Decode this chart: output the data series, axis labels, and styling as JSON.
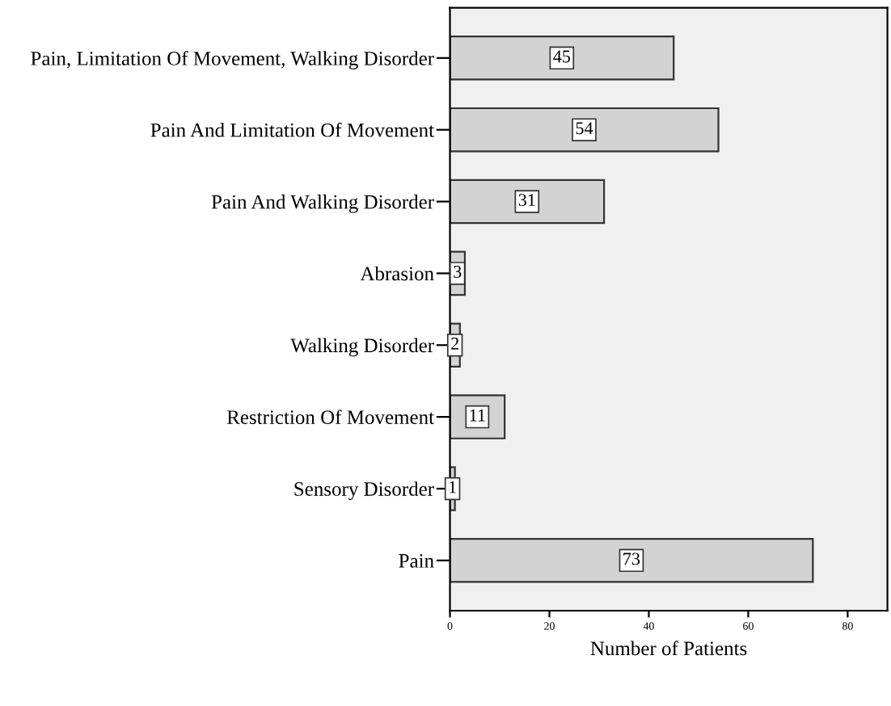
{
  "chart_data": {
    "type": "bar",
    "orientation": "horizontal",
    "xlabel": "Number of Patients",
    "categories": [
      "Pain, Limitation Of Movement, Walking Disorder",
      "Pain And Limitation Of Movement",
      "Pain And Walking Disorder",
      "Abrasion",
      "Walking Disorder",
      "Restriction Of Movement",
      "Sensory Disorder",
      "Pain"
    ],
    "values": [
      45,
      54,
      31,
      3,
      2,
      11,
      1,
      73
    ],
    "color": "#d3d3d3",
    "data_labels": true,
    "xlim": [
      0,
      88
    ],
    "xticks": [
      0,
      20,
      40,
      60,
      80
    ],
    "grid": false,
    "legend": false
  }
}
